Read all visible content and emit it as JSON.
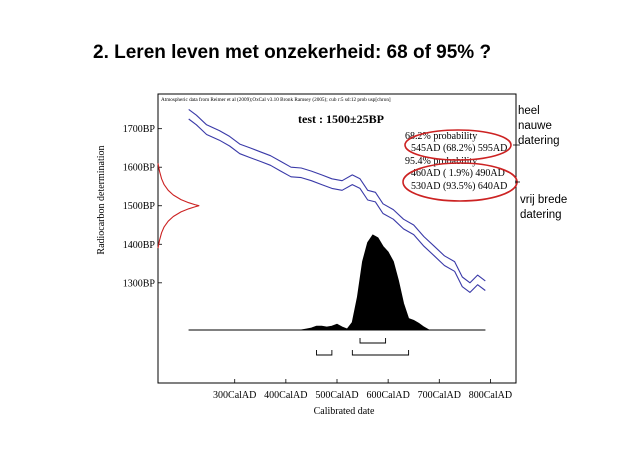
{
  "slide": {
    "title": "2. Leren leven met onzekerheid: 68 of 95% ?",
    "note_narrow": [
      "heel",
      "nauwe",
      "datering"
    ],
    "note_broad": [
      "vrij brede",
      "datering"
    ]
  },
  "chart_data": {
    "type": "line",
    "header": "Atmospheric data from Reimer et al (2009);OxCal v3.10 Bronk Ramsey (2005); cub r:5 sd:12 prob usp[chron]",
    "sample_label": "test : 1500±25BP",
    "xlabel": "Calibrated date",
    "ylabel": "Radiocarbon determination",
    "xlim": [
      150,
      850
    ],
    "ylim": [
      1040,
      1790
    ],
    "x_ticks": [
      {
        "value": 300,
        "label": "300CalAD"
      },
      {
        "value": 400,
        "label": "400CalAD"
      },
      {
        "value": 500,
        "label": "500CalAD"
      },
      {
        "value": 600,
        "label": "600CalAD"
      },
      {
        "value": 700,
        "label": "700CalAD"
      },
      {
        "value": 800,
        "label": "800CalAD"
      }
    ],
    "y_ticks": [
      {
        "value": 1700,
        "label": "1700BP"
      },
      {
        "value": 1600,
        "label": "1600BP"
      },
      {
        "value": 1500,
        "label": "1500BP"
      },
      {
        "value": 1400,
        "label": "1400BP"
      },
      {
        "value": 1300,
        "label": "1300BP"
      }
    ],
    "ranges_text": [
      "68.2% probability",
      "545AD (68.2%) 595AD",
      "95.4% probability",
      "460AD ( 1.9%) 490AD",
      "530AD (93.5%) 640AD"
    ],
    "series": [
      {
        "color": "#3a3aa8",
        "x": [
          210,
          225,
          245,
          270,
          290,
          310,
          330,
          350,
          370,
          390,
          410,
          430,
          450,
          470,
          490,
          510,
          530,
          545,
          560,
          575,
          590,
          610,
          630,
          650,
          670,
          690,
          710,
          730,
          745,
          760,
          775,
          790
        ],
        "y": [
          1750,
          1735,
          1710,
          1695,
          1680,
          1660,
          1650,
          1640,
          1630,
          1615,
          1600,
          1598,
          1590,
          1580,
          1570,
          1565,
          1580,
          1570,
          1540,
          1535,
          1505,
          1490,
          1465,
          1450,
          1420,
          1395,
          1370,
          1355,
          1315,
          1300,
          1320,
          1305
        ]
      },
      {
        "color": "#3a3aa8",
        "x": [
          210,
          225,
          245,
          270,
          290,
          310,
          330,
          350,
          370,
          390,
          410,
          430,
          450,
          470,
          490,
          510,
          530,
          545,
          560,
          575,
          590,
          610,
          630,
          650,
          670,
          690,
          710,
          730,
          745,
          760,
          775,
          790
        ],
        "y": [
          1725,
          1710,
          1685,
          1670,
          1655,
          1635,
          1625,
          1615,
          1605,
          1590,
          1575,
          1573,
          1565,
          1555,
          1545,
          1540,
          1555,
          1545,
          1515,
          1510,
          1480,
          1465,
          1440,
          1425,
          1395,
          1370,
          1345,
          1330,
          1290,
          1275,
          1295,
          1280
        ]
      },
      {
        "color": "#cc2222",
        "x": [
          150,
          153,
          157,
          162,
          170,
          180,
          195,
          210,
          222,
          230,
          222,
          210,
          195,
          180,
          170,
          162,
          157,
          153,
          150
        ],
        "y": [
          1610,
          1590,
          1570,
          1555,
          1540,
          1528,
          1516,
          1508,
          1503,
          1500,
          1497,
          1492,
          1484,
          1472,
          1460,
          1445,
          1430,
          1410,
          1390
        ]
      }
    ],
    "density": {
      "x": [
        210,
        240,
        260,
        270,
        280,
        290,
        300,
        310,
        320,
        330,
        340,
        350,
        360,
        370,
        380,
        390,
        400,
        410,
        420,
        430,
        440,
        450,
        460,
        470,
        480,
        490,
        500,
        510,
        520,
        530,
        540,
        550,
        560,
        570,
        580,
        590,
        600,
        610,
        620,
        630,
        640,
        650,
        660,
        670,
        680,
        690,
        700,
        730,
        760,
        790
      ],
      "y": [
        0,
        0,
        0,
        0,
        0,
        0,
        0,
        0,
        0,
        0,
        0,
        0,
        0,
        0,
        0,
        0,
        0,
        0,
        0,
        0,
        0.01,
        0.02,
        0.04,
        0.04,
        0.03,
        0.04,
        0.06,
        0.03,
        0.01,
        0.08,
        0.35,
        0.72,
        0.92,
        1.0,
        0.97,
        0.88,
        0.82,
        0.72,
        0.52,
        0.28,
        0.12,
        0.1,
        0.07,
        0.03,
        0,
        0,
        0,
        0,
        0,
        0
      ]
    },
    "intervals": [
      [
        545,
        595
      ],
      [
        460,
        490
      ],
      [
        530,
        640
      ]
    ]
  }
}
